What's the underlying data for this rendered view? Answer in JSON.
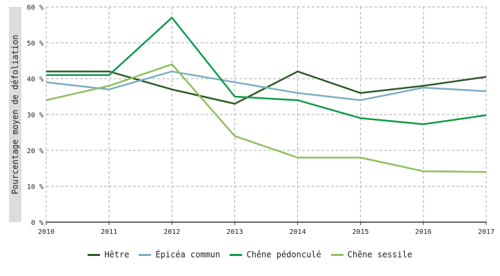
{
  "chart_data": {
    "type": "line",
    "title": "",
    "xlabel": "",
    "ylabel": "Pourcentage moyen de défoliation",
    "x": [
      2010,
      2011,
      2012,
      2013,
      2014,
      2015,
      2016,
      2017
    ],
    "x_tick_labels": [
      "2010",
      "2011",
      "2012",
      "2013",
      "2014",
      "2015",
      "2016",
      "2017"
    ],
    "ylim": [
      0,
      60
    ],
    "y_ticks": [
      0,
      10,
      20,
      30,
      40,
      50,
      60
    ],
    "y_tick_labels": [
      "0 %",
      "10 %",
      "20 %",
      "30 %",
      "40 %",
      "50 %",
      "60 %"
    ],
    "grid": true,
    "legend_position": "bottom",
    "series": [
      {
        "name": "Hêtre",
        "color": "#2d5a27",
        "values": [
          42,
          42,
          37,
          33,
          42,
          36,
          38,
          40.5
        ]
      },
      {
        "name": "Épicéa commun",
        "color": "#7aaec4",
        "values": [
          39,
          37,
          42,
          39,
          36,
          34,
          37.5,
          36.5
        ]
      },
      {
        "name": "Chêne pédonculé",
        "color": "#0e9a4a",
        "values": [
          41,
          41,
          57,
          35,
          34,
          29,
          27.3,
          29.8
        ]
      },
      {
        "name": "Chêne sessile",
        "color": "#8fbe5d",
        "values": [
          34,
          38,
          44,
          24,
          18,
          18,
          14.2,
          14
        ]
      }
    ]
  }
}
